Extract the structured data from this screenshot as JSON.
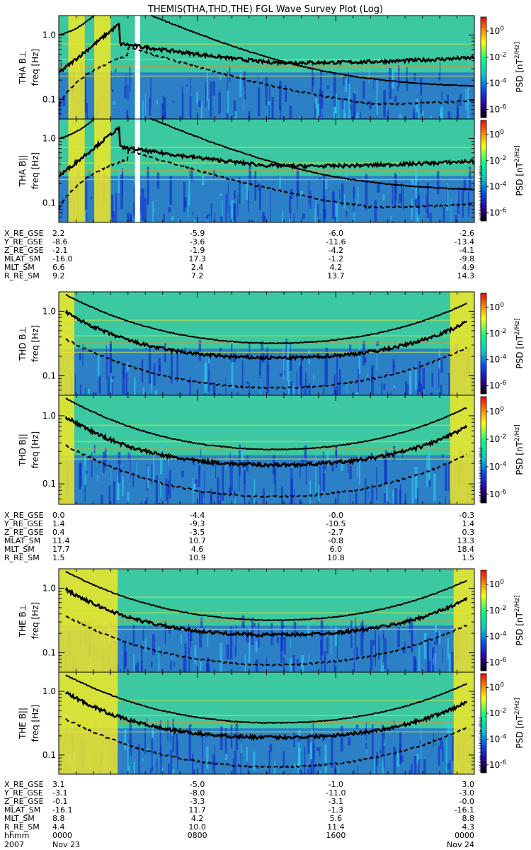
{
  "title": "THEMIS(THA,THD,THE) FGL Wave Survey Plot (Log)",
  "colors": {
    "background": "#ffffff",
    "spectrogram_base": "#3cc8a0",
    "noise_blue": "#1e46e6",
    "band_yellow": "#f0e628",
    "line": "#000000"
  },
  "colorbar": {
    "ticks": [
      "10^0",
      "10^-2",
      "10^-4",
      "10^-6"
    ],
    "label": "PSD [nT^2/Hz]",
    "colors": [
      "#ff0000",
      "#ff8000",
      "#ffff00",
      "#00ff80",
      "#00c8c8",
      "#0050ff",
      "#3000b0",
      "#000000"
    ]
  },
  "probes": [
    {
      "id": "THA",
      "panels": [
        {
          "label": "THA B⊥",
          "ylabel": "freq [Hz]"
        },
        {
          "label": "THA B||",
          "ylabel": "freq [Hz]",
          "stamp": "Sat Sep 1 11h27:14 2012"
        }
      ],
      "ephemeris": [
        {
          "name": "X_RE_GSE",
          "values": [
            "2.2",
            "-5.9",
            "-6.0",
            "-2.6"
          ]
        },
        {
          "name": "Y_RE_GSE",
          "values": [
            "-8.6",
            "-3.6",
            "-11.6",
            "-13.4"
          ]
        },
        {
          "name": "Z_RE_GSE",
          "values": [
            "-2.1",
            "-1.9",
            "-4.2",
            "-4.1"
          ]
        },
        {
          "name": "MLAT_SM",
          "values": [
            "-16.0",
            "17.3",
            "-1.2",
            "-9.8"
          ]
        },
        {
          "name": "MLT_SM",
          "values": [
            "6.6",
            "2.4",
            "4.2",
            "4.9"
          ]
        },
        {
          "name": "R_RE_SM",
          "values": [
            "9.2",
            "7.2",
            "13.7",
            "14.3"
          ]
        }
      ]
    },
    {
      "id": "THD",
      "panels": [
        {
          "label": "THD B⊥",
          "ylabel": "freq [Hz]"
        },
        {
          "label": "THD B||",
          "ylabel": "freq [Hz]",
          "stamp": "Sat Sep 1 11h27:15 2012"
        }
      ],
      "ephemeris": [
        {
          "name": "X_RE_GSE",
          "values": [
            "0.0",
            "-4.4",
            "-0.0",
            "-0.3"
          ]
        },
        {
          "name": "Y_RE_GSE",
          "values": [
            "1.4",
            "-9.3",
            "-10.5",
            "1.4"
          ]
        },
        {
          "name": "Z_RE_GSE",
          "values": [
            "0.4",
            "-3.5",
            "-2.7",
            "0.3"
          ]
        },
        {
          "name": "MLAT_SM",
          "values": [
            "11.4",
            "10.7",
            "-0.8",
            "13.3"
          ]
        },
        {
          "name": "MLT_SM",
          "values": [
            "17.7",
            "4.6",
            "6.0",
            "18.4"
          ]
        },
        {
          "name": "R_RE_SM",
          "values": [
            "1.5",
            "10.9",
            "10.8",
            "1.5"
          ]
        }
      ]
    },
    {
      "id": "THE",
      "panels": [
        {
          "label": "THE B⊥",
          "ylabel": "freq [Hz]"
        },
        {
          "label": "THE B||",
          "ylabel": "freq [Hz]",
          "stamp": "Sat Sep 1 11h27:16 2012"
        }
      ],
      "ephemeris": [
        {
          "name": "X_RE_GSE",
          "values": [
            "3.1",
            "-5.0",
            "-1.0",
            "3.0"
          ]
        },
        {
          "name": "Y_RE_GSE",
          "values": [
            "-3.1",
            "-8.0",
            "-11.0",
            "-3.0"
          ]
        },
        {
          "name": "Z_RE_GSE",
          "values": [
            "-0.1",
            "-3.3",
            "-3.1",
            "-0.0"
          ]
        },
        {
          "name": "MLAT_SM",
          "values": [
            "-16.1",
            "11.7",
            "-1.3",
            "-16.1"
          ]
        },
        {
          "name": "MLT_SM",
          "values": [
            "8.8",
            "4.2",
            "5.6",
            "8.8"
          ]
        },
        {
          "name": "R_RE_SM",
          "values": [
            "4.4",
            "10.0",
            "11.4",
            "4.3"
          ]
        },
        {
          "name": "hhmm",
          "values": [
            "0000",
            "0800",
            "1600",
            "0000"
          ]
        }
      ]
    }
  ],
  "date_row": {
    "year": "2007",
    "start": "Nov 23",
    "end": "Nov 24"
  },
  "chart_data": {
    "type": "heatmap",
    "title": "THEMIS(THA,THD,THE) FGL Wave Survey Plot (Log)",
    "xlabel": "hhmm",
    "x_ticks": [
      "0000",
      "0800",
      "1600",
      "0000"
    ],
    "x_range_hours": [
      0,
      24
    ],
    "ylabel": "freq [Hz]",
    "y_scale": "log",
    "ylim": [
      0.05,
      2.0
    ],
    "y_ticks": [
      0.1,
      1.0
    ],
    "y_tick_labels": [
      "0.1",
      "1.0"
    ],
    "z_label": "PSD [nT^2/Hz]",
    "z_scale": "log",
    "z_ticks": [
      1,
      0.01,
      0.0001,
      1e-06
    ],
    "z_tick_labels": [
      "10^0",
      "10^-2",
      "10^-4",
      "10^-6"
    ],
    "panels": [
      "THA B⊥",
      "THA B||",
      "THD B⊥",
      "THD B||",
      "THE B⊥",
      "THE B||"
    ],
    "overlay_lines": [
      "solid",
      "thick",
      "dashed"
    ],
    "data_gap_hours": {
      "THA": [
        4.4,
        4.7
      ]
    }
  }
}
